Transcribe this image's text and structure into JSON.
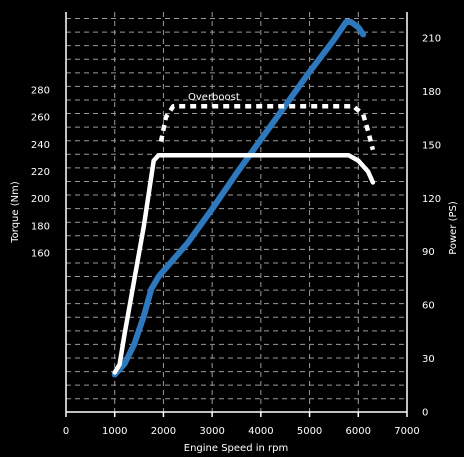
{
  "chart_data": {
    "type": "line",
    "xlabel": "Engine Speed in rpm",
    "ylabel_left": "Torque (Nm)",
    "ylabel_right": "Power (PS)",
    "x_ticks": [
      0,
      1000,
      2000,
      3000,
      4000,
      5000,
      6000,
      7000
    ],
    "xlim": [
      0,
      7000
    ],
    "torque_ticks": [
      160,
      180,
      200,
      220,
      240,
      260,
      280
    ],
    "power_ticks": [
      0,
      30,
      60,
      90,
      120,
      150,
      180,
      210
    ],
    "power_lim": [
      0,
      220
    ],
    "grid": true,
    "annotation": "Overboost",
    "colors": {
      "torque": "#ffffff",
      "power": "#2e78be",
      "background": "#000000",
      "grid": "#9a9a9a"
    },
    "series": [
      {
        "name": "",
        "axis": "power",
        "style": "solid",
        "points": [
          [
            1000,
            21
          ],
          [
            1200,
            27
          ],
          [
            1400,
            38
          ],
          [
            1600,
            54
          ],
          [
            1750,
            69
          ],
          [
            1900,
            76
          ],
          [
            2500,
            95
          ],
          [
            3000,
            114
          ],
          [
            3500,
            134
          ],
          [
            4000,
            153
          ],
          [
            4500,
            172
          ],
          [
            5000,
            191
          ],
          [
            5500,
            209
          ],
          [
            5750,
            219
          ],
          [
            5850,
            219
          ],
          [
            6000,
            216
          ],
          [
            6100,
            212
          ]
        ]
      },
      {
        "name": "",
        "axis": "torque",
        "style": "solid",
        "points": [
          [
            1000,
            72
          ],
          [
            1100,
            78
          ],
          [
            1200,
            100
          ],
          [
            1400,
            140
          ],
          [
            1600,
            180
          ],
          [
            1800,
            228
          ],
          [
            1900,
            232
          ],
          [
            2000,
            232
          ],
          [
            3000,
            232
          ],
          [
            4000,
            232
          ],
          [
            5000,
            232
          ],
          [
            5800,
            232
          ],
          [
            6000,
            228
          ],
          [
            6200,
            220
          ],
          [
            6300,
            212
          ]
        ]
      },
      {
        "name": "",
        "axis": "torque",
        "style": "dashed",
        "points": [
          [
            1950,
            242
          ],
          [
            2050,
            260
          ],
          [
            2200,
            268
          ],
          [
            3000,
            268
          ],
          [
            4000,
            268
          ],
          [
            5000,
            268
          ],
          [
            5900,
            268
          ],
          [
            6100,
            262
          ],
          [
            6200,
            250
          ],
          [
            6300,
            236
          ]
        ]
      }
    ]
  }
}
